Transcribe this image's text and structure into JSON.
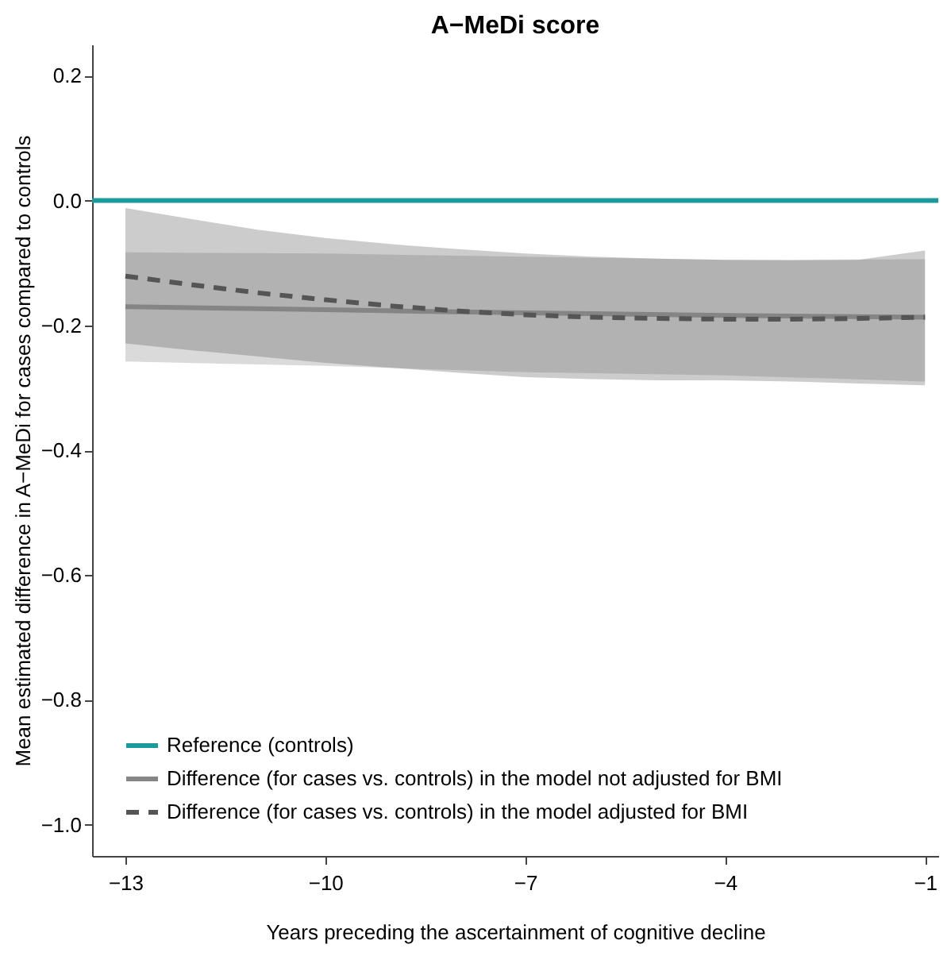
{
  "chart_data": {
    "type": "line",
    "title": "A−MeDi score",
    "xlabel": "Years preceding the ascertainment of cognitive decline",
    "ylabel": "Mean estimated difference in A−MeDi for cases compared to controls",
    "xlim": [
      -13.5,
      -0.8
    ],
    "ylim": [
      -1.05,
      0.25
    ],
    "xticks": [
      -13,
      -10,
      -7,
      -4,
      -1
    ],
    "yticks": [
      {
        "value": -1.0,
        "label": "−1.0"
      },
      {
        "value": -0.8,
        "label": "−0.8"
      },
      {
        "value": -0.6,
        "label": "−0.6"
      },
      {
        "value": -0.4,
        "label": "−0.4"
      },
      {
        "value": -0.2,
        "label": "−0.2"
      },
      {
        "value": 0.0,
        "label": "0.0"
      },
      {
        "value": 0.2,
        "label": "0.2"
      }
    ],
    "grid": false,
    "legend": "bottom left",
    "series": [
      {
        "name": "Reference (controls)",
        "color": "#1a9a9a",
        "line_style": "solid",
        "x": [
          -13.5,
          -0.8
        ],
        "values": [
          0,
          0
        ]
      },
      {
        "name": "Difference (for cases vs. controls) in the model not adjusted for BMI",
        "color": "#858585",
        "line_style": "solid",
        "x": [
          -13,
          -10,
          -7,
          -4,
          -1
        ],
        "values": [
          -0.17,
          -0.175,
          -0.18,
          -0.184,
          -0.187
        ],
        "lower": [
          -0.258,
          -0.265,
          -0.275,
          -0.28,
          -0.29
        ],
        "upper": [
          -0.083,
          -0.085,
          -0.09,
          -0.095,
          -0.094
        ]
      },
      {
        "name": "Difference (for cases vs. controls) in the model adjusted for BMI",
        "color": "#555555",
        "line_style": "dashed",
        "x": [
          -13,
          -12,
          -11,
          -10,
          -9,
          -8,
          -7,
          -6,
          -5,
          -4,
          -3,
          -2,
          -1
        ],
        "values": [
          -0.121,
          -0.135,
          -0.148,
          -0.159,
          -0.169,
          -0.177,
          -0.183,
          -0.187,
          -0.189,
          -0.19,
          -0.19,
          -0.189,
          -0.187
        ],
        "lower": [
          -0.229,
          -0.24,
          -0.25,
          -0.26,
          -0.268,
          -0.276,
          -0.283,
          -0.286,
          -0.288,
          -0.288,
          -0.29,
          -0.293,
          -0.296
        ],
        "upper": [
          -0.012,
          -0.03,
          -0.047,
          -0.06,
          -0.07,
          -0.078,
          -0.085,
          -0.09,
          -0.093,
          -0.095,
          -0.096,
          -0.095,
          -0.08
        ]
      }
    ]
  }
}
